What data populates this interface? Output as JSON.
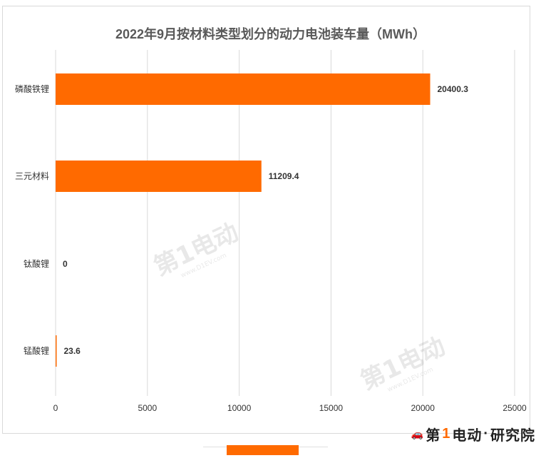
{
  "chart_data": {
    "type": "bar",
    "orientation": "horizontal",
    "title": "2022年9月按材料类型划分的动力电池装车量（MWh）",
    "categories": [
      "磷酸铁锂",
      "三元材料",
      "钛酸锂",
      "锰酸锂"
    ],
    "values": [
      20400.3,
      11209.4,
      0,
      23.6
    ],
    "value_labels": [
      "20400.3",
      "11209.4",
      "0",
      "23.6"
    ],
    "xlim": [
      0,
      25000
    ],
    "x_ticks": [
      "0",
      "5000",
      "10000",
      "15000",
      "20000",
      "25000"
    ],
    "grid": true,
    "bar_color": "#ff6a00",
    "xlabel": "",
    "ylabel": ""
  },
  "watermark": {
    "text": "第1电动",
    "url": "www.D1EV.com"
  },
  "brand": {
    "prefix": "第",
    "number": "1",
    "name": "电动",
    "separator": "·",
    "suffix": "研究院"
  }
}
